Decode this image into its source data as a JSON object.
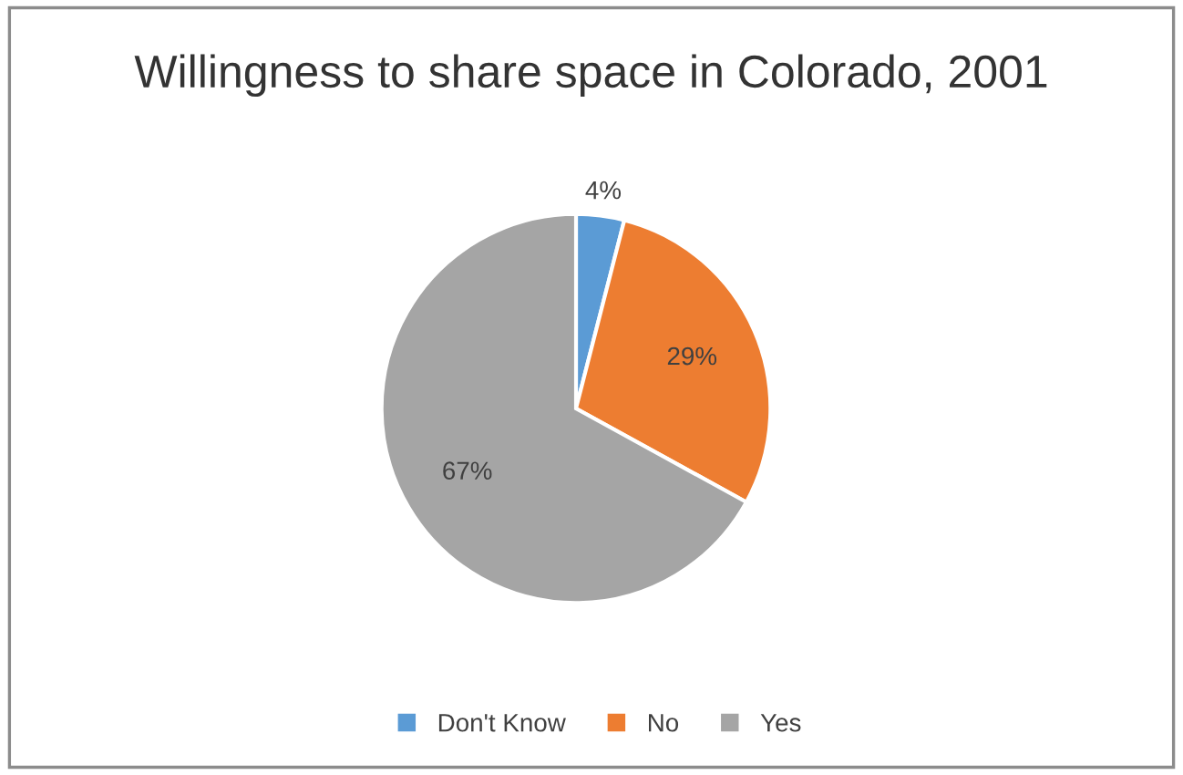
{
  "chart_data": {
    "type": "pie",
    "title": "Willingness to share space in Colorado, 2001",
    "categories": [
      "Don't Know",
      "No",
      "Yes"
    ],
    "values": [
      4,
      29,
      67
    ],
    "colors": [
      "#5b9bd5",
      "#ed7d31",
      "#a5a5a5"
    ],
    "value_labels": [
      "4%",
      "29%",
      "67%"
    ],
    "legend": "bottom"
  }
}
